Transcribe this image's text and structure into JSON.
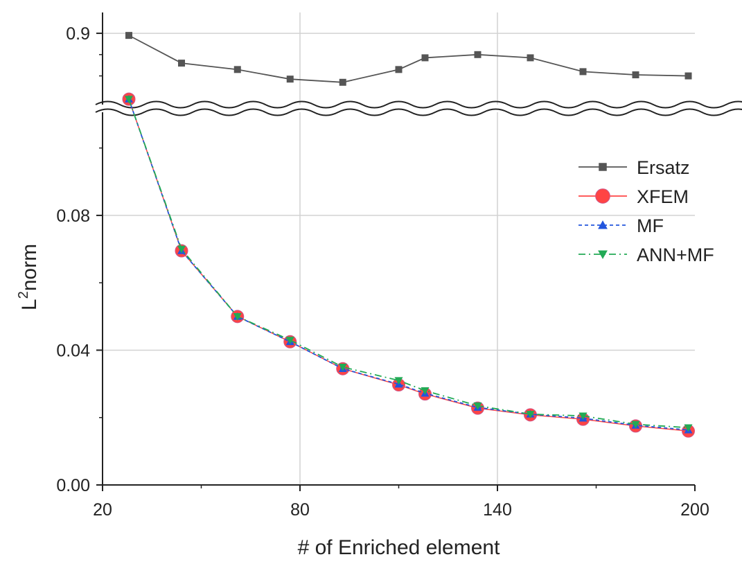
{
  "chart_data": {
    "type": "line",
    "xlabel": "# of Enriched element",
    "ylabel": {
      "base": "L",
      "superscript": "2",
      "rest": "norm"
    },
    "xlim": [
      20,
      200
    ],
    "x_ticks": [
      "20",
      "80",
      "140",
      "200"
    ],
    "ylim_lower": [
      0,
      0.11
    ],
    "y_ticks_lower": [
      "0.00",
      "0.04",
      "0.08"
    ],
    "ylim_upper": [
      0.835,
      0.915
    ],
    "y_ticks_upper": [
      "0.9"
    ],
    "axis_break": true,
    "grid": true,
    "legend_position": "right",
    "series": [
      {
        "name": "Ersatz",
        "color": "#555555",
        "marker": "square",
        "line": "solid",
        "panel": "upper",
        "x": [
          28,
          44,
          61,
          77,
          93,
          110,
          118,
          134,
          150,
          166,
          182,
          198
        ],
        "y": [
          0.898,
          0.872,
          0.866,
          0.857,
          0.854,
          0.866,
          0.877,
          0.88,
          0.877,
          0.864,
          0.861,
          0.86
        ]
      },
      {
        "name": "XFEM",
        "color": "#ff4444",
        "marker": "circle",
        "line": "solid",
        "panel": "lower",
        "x": [
          28,
          44,
          61,
          77,
          93,
          110,
          118,
          134,
          150,
          166,
          182,
          198
        ],
        "y": [
          0.1145,
          0.0695,
          0.05,
          0.0425,
          0.0345,
          0.0297,
          0.027,
          0.0228,
          0.0208,
          0.0195,
          0.0175,
          0.016
        ]
      },
      {
        "name": "MF",
        "color": "#2255dd",
        "marker": "triangle-up",
        "line": "dashed",
        "panel": "lower",
        "x": [
          28,
          44,
          61,
          77,
          93,
          110,
          118,
          134,
          150,
          166,
          182,
          198
        ],
        "y": [
          0.1145,
          0.0695,
          0.05,
          0.0425,
          0.0345,
          0.0299,
          0.0272,
          0.023,
          0.021,
          0.0198,
          0.0177,
          0.0163
        ]
      },
      {
        "name": "ANN+MF",
        "color": "#22aa55",
        "marker": "triangle-down",
        "line": "dashdot",
        "panel": "lower",
        "x": [
          28,
          44,
          61,
          77,
          93,
          110,
          118,
          134,
          150,
          166,
          182,
          198
        ],
        "y": [
          0.1145,
          0.07,
          0.05,
          0.043,
          0.035,
          0.031,
          0.028,
          0.0235,
          0.021,
          0.0205,
          0.018,
          0.017
        ]
      }
    ]
  }
}
